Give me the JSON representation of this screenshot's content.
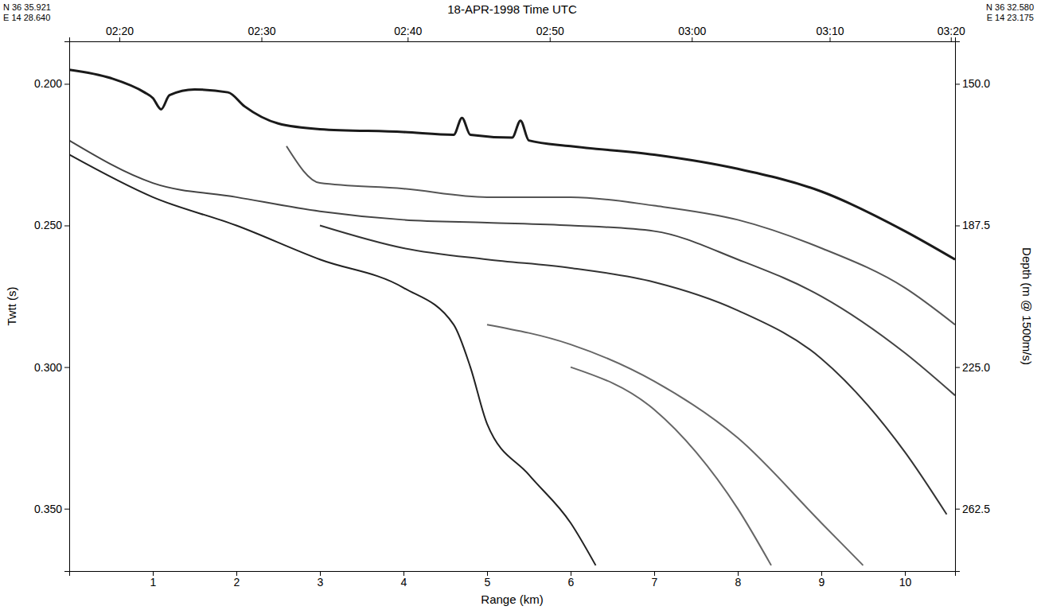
{
  "chart_data": {
    "type": "line",
    "title": "18-APR-1998   Time UTC",
    "annotations": {
      "start_lat": "N 36 35.921",
      "start_lon": "E 14 28.640",
      "end_lat": "N 36 32.580",
      "end_lon": "E 14 23.175"
    },
    "x_label": "Range (km)",
    "y_label": "Twtt (s)",
    "y2_label": "Depth (m @ 1500m/s)",
    "xlim": [
      0,
      10.6
    ],
    "xticks": [
      1,
      2,
      3,
      4,
      5,
      6,
      7,
      8,
      9,
      10
    ],
    "x2ticks": [
      {
        "value": 0.6,
        "label": "02:20"
      },
      {
        "value": 2.3,
        "label": "02:30"
      },
      {
        "value": 4.05,
        "label": "02:40"
      },
      {
        "value": 5.75,
        "label": "02:50"
      },
      {
        "value": 7.45,
        "label": "03:00"
      },
      {
        "value": 9.1,
        "label": "03:10"
      },
      {
        "value": 10.55,
        "label": "03:20"
      }
    ],
    "ylim": [
      0.372,
      0.185
    ],
    "yticks": [
      {
        "value": 0.2,
        "label": "0.200"
      },
      {
        "value": 0.25,
        "label": "0.250"
      },
      {
        "value": 0.3,
        "label": "0.300"
      },
      {
        "value": 0.35,
        "label": "0.350"
      }
    ],
    "y2lim": [
      279,
      138.75
    ],
    "y2ticks": [
      {
        "value": 150,
        "label": "150.0"
      },
      187.5,
      {
        "value": 225,
        "label": "225.0"
      },
      262.5
    ],
    "grid": false,
    "series": [
      {
        "color": "#1a1a1a",
        "x": [
          0,
          0.5,
          0.9,
          1.0,
          1.1,
          1.2,
          1.5,
          1.9,
          2.1,
          2.5,
          3.0,
          4.0,
          4.6,
          4.7,
          4.8,
          5.3,
          5.4,
          5.5,
          6,
          7,
          8,
          9,
          10,
          10.6
        ],
        "values": [
          0.195,
          0.198,
          0.203,
          0.205,
          0.209,
          0.204,
          0.202,
          0.203,
          0.208,
          0.214,
          0.216,
          0.217,
          0.218,
          0.212,
          0.218,
          0.219,
          0.213,
          0.22,
          0.222,
          0.225,
          0.23,
          0.238,
          0.252,
          0.262
        ]
      },
      {
        "color": "#555555",
        "x": [
          2.6,
          3.0,
          4,
          5,
          6,
          7,
          8,
          9,
          10,
          10.6
        ],
        "values": [
          0.222,
          0.235,
          0.237,
          0.24,
          0.24,
          0.243,
          0.248,
          0.258,
          0.272,
          0.285
        ]
      },
      {
        "color": "#444444",
        "x": [
          0,
          1,
          2,
          3,
          4,
          5,
          6,
          7,
          8,
          9,
          10,
          10.6
        ],
        "values": [
          0.22,
          0.235,
          0.24,
          0.245,
          0.248,
          0.249,
          0.25,
          0.252,
          0.262,
          0.275,
          0.295,
          0.31
        ]
      },
      {
        "color": "#222222",
        "x": [
          0,
          1,
          2,
          3,
          4,
          4.6,
          4.8,
          5.0,
          5.5,
          6,
          6.3
        ],
        "values": [
          0.225,
          0.24,
          0.25,
          0.262,
          0.272,
          0.285,
          0.3,
          0.32,
          0.338,
          0.355,
          0.37
        ]
      },
      {
        "color": "#333333",
        "x": [
          3,
          4,
          5,
          6,
          7,
          8,
          9,
          10,
          10.5
        ],
        "values": [
          0.25,
          0.258,
          0.262,
          0.265,
          0.27,
          0.28,
          0.297,
          0.33,
          0.352
        ]
      },
      {
        "color": "#666666",
        "x": [
          5,
          6,
          7,
          8,
          9,
          9.5
        ],
        "values": [
          0.285,
          0.292,
          0.305,
          0.325,
          0.355,
          0.37
        ]
      },
      {
        "color": "#666666",
        "x": [
          6,
          7,
          7.5,
          8,
          8.4
        ],
        "values": [
          0.3,
          0.315,
          0.33,
          0.35,
          0.37
        ]
      }
    ]
  }
}
